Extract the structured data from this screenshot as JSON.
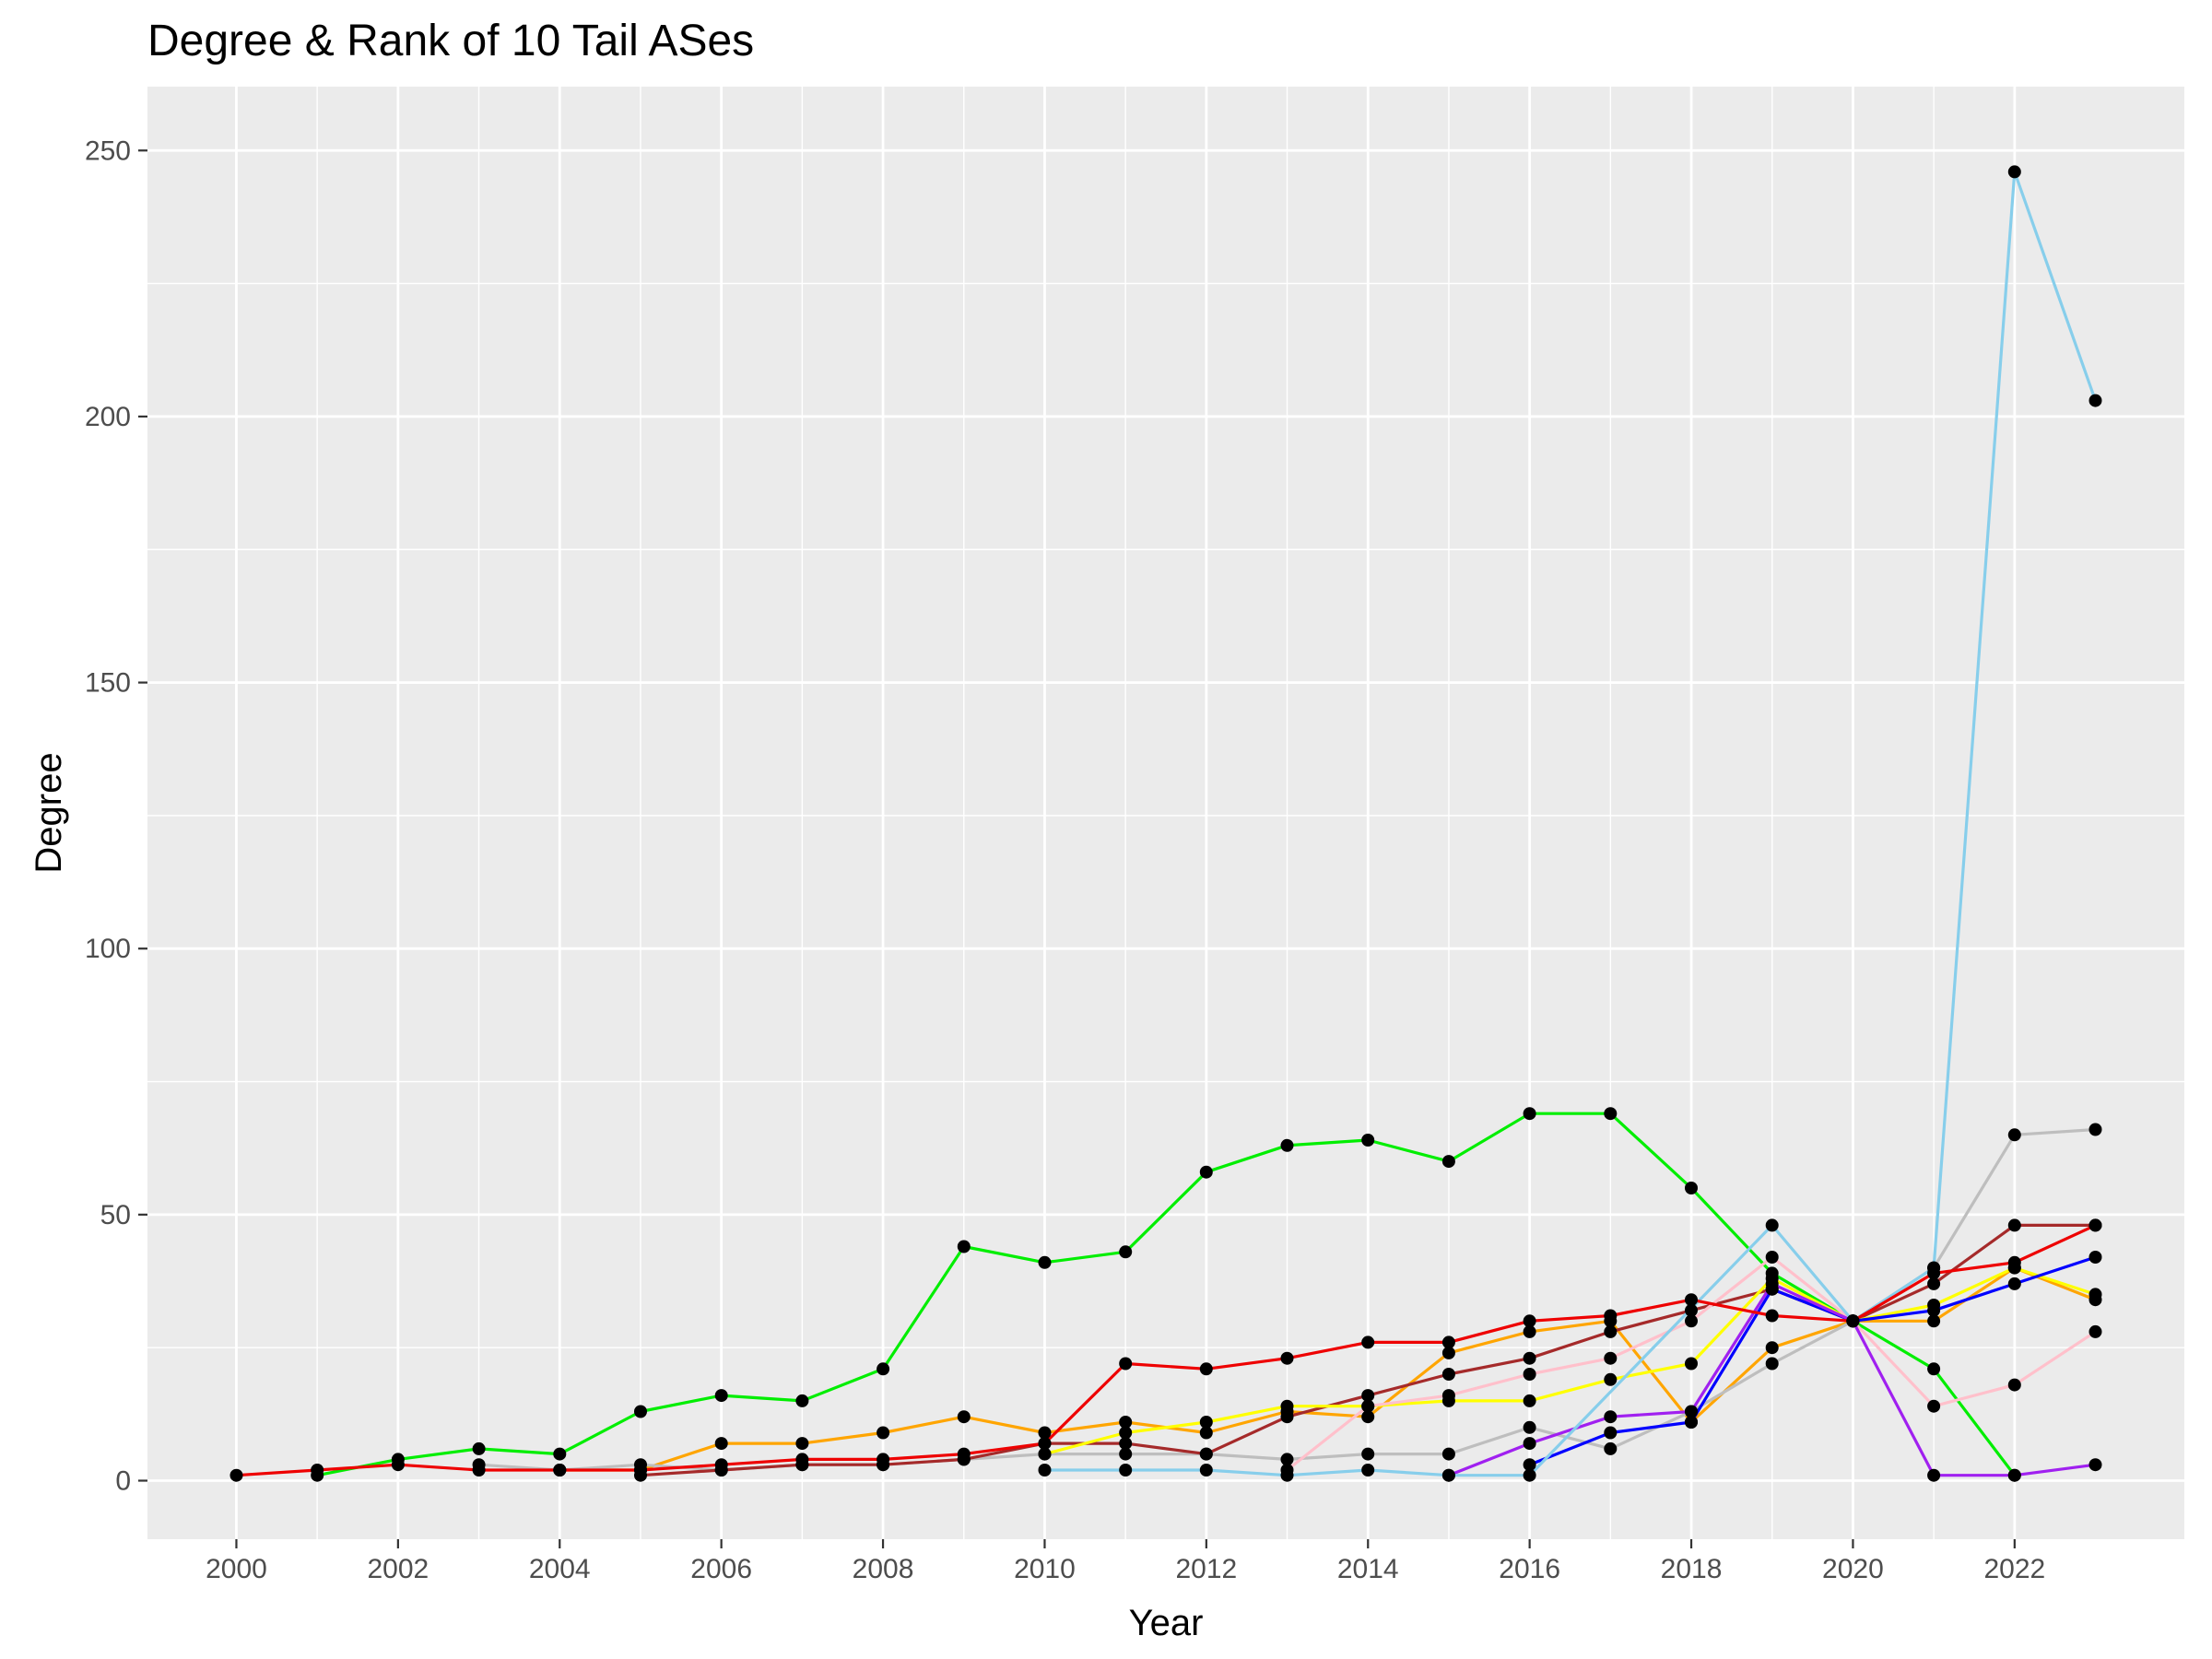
{
  "chart_data": {
    "type": "line",
    "title": "Degree & Rank of 10 Tail ASes",
    "xlabel": "Year",
    "ylabel": "Degree",
    "xlim": [
      1998.9,
      2024.1
    ],
    "ylim": [
      -11,
      262
    ],
    "x_ticks": [
      2000,
      2002,
      2004,
      2006,
      2008,
      2010,
      2012,
      2014,
      2016,
      2018,
      2020,
      2022
    ],
    "y_ticks": [
      0,
      50,
      100,
      150,
      200,
      250
    ],
    "grid": true,
    "legend": "none",
    "colors": {
      "panel_background": "#ebebeb",
      "grid": "#ffffff",
      "point": "#000000",
      "tick_text": "#4d4d4d"
    },
    "series": [
      {
        "color": "#00ee00",
        "x": [
          2001,
          2002,
          2003,
          2004,
          2005,
          2006,
          2007,
          2008,
          2009,
          2010,
          2011,
          2012,
          2013,
          2014,
          2015,
          2016,
          2017,
          2018,
          2019,
          2020,
          2021,
          2022
        ],
        "values": [
          1,
          4,
          6,
          5,
          13,
          16,
          15,
          21,
          44,
          41,
          43,
          58,
          63,
          64,
          60,
          69,
          69,
          55,
          39,
          30,
          21,
          1
        ]
      },
      {
        "color": "#ffa500",
        "x": [
          2004,
          2005,
          2006,
          2007,
          2008,
          2009,
          2010,
          2011,
          2012,
          2013,
          2014,
          2015,
          2016,
          2017,
          2018,
          2019,
          2020,
          2021,
          2022,
          2023
        ],
        "values": [
          2,
          2,
          7,
          7,
          9,
          12,
          9,
          11,
          9,
          13,
          12,
          24,
          28,
          30,
          11,
          25,
          30,
          30,
          40,
          34
        ]
      },
      {
        "color": "#bebebe",
        "x": [
          2003,
          2004,
          2005,
          2006,
          2007,
          2008,
          2009,
          2010,
          2011,
          2012,
          2013,
          2014,
          2015,
          2016,
          2017,
          2018,
          2019,
          2020,
          2021,
          2022,
          2023
        ],
        "values": [
          3,
          2,
          3,
          2,
          3,
          3,
          4,
          5,
          5,
          5,
          4,
          5,
          5,
          10,
          6,
          13,
          22,
          30,
          40,
          65,
          66
        ]
      },
      {
        "color": "#a52a2a",
        "x": [
          2005,
          2006,
          2007,
          2008,
          2009,
          2010,
          2011,
          2012,
          2013,
          2014,
          2015,
          2016,
          2017,
          2018,
          2019,
          2020,
          2021,
          2022,
          2023
        ],
        "values": [
          1,
          2,
          3,
          3,
          4,
          7,
          7,
          5,
          12,
          16,
          20,
          23,
          28,
          32,
          36,
          30,
          37,
          48,
          48
        ]
      },
      {
        "color": "#ffff00",
        "x": [
          2010,
          2011,
          2012,
          2013,
          2014,
          2015,
          2016,
          2017,
          2018,
          2019,
          2020,
          2021,
          2022,
          2023
        ],
        "values": [
          5,
          9,
          11,
          14,
          14,
          15,
          15,
          19,
          22,
          38,
          30,
          33,
          40,
          35
        ]
      },
      {
        "color": "#ffc0cb",
        "x": [
          2013,
          2014,
          2015,
          2016,
          2017,
          2018,
          2019,
          2020,
          2021,
          2022,
          2023
        ],
        "values": [
          2,
          14,
          16,
          20,
          23,
          30,
          42,
          30,
          14,
          18,
          28
        ]
      },
      {
        "color": "#0000ff",
        "x": [
          2016,
          2017,
          2018,
          2019,
          2020,
          2021,
          2022,
          2023
        ],
        "values": [
          3,
          9,
          11,
          36,
          30,
          32,
          37,
          42
        ]
      },
      {
        "color": "#a020f0",
        "x": [
          2015,
          2016,
          2017,
          2018,
          2019,
          2020,
          2021,
          2022,
          2023
        ],
        "values": [
          1,
          7,
          12,
          13,
          37,
          30,
          1,
          1,
          3
        ]
      },
      {
        "color": "#87ceeb",
        "x": [
          2010,
          2011,
          2012,
          2013,
          2014,
          2015,
          2016,
          2019,
          2020,
          2021,
          2022,
          2023
        ],
        "values": [
          2,
          2,
          2,
          1,
          2,
          1,
          1,
          48,
          30,
          40,
          246,
          203
        ]
      },
      {
        "color": "#ee0000",
        "x": [
          2000,
          2001,
          2002,
          2003,
          2004,
          2005,
          2006,
          2007,
          2008,
          2009,
          2010,
          2011,
          2012,
          2013,
          2014,
          2015,
          2016,
          2017,
          2018,
          2019,
          2020,
          2021,
          2022,
          2023
        ],
        "values": [
          1,
          2,
          3,
          2,
          2,
          2,
          3,
          4,
          4,
          5,
          7,
          22,
          21,
          23,
          26,
          26,
          30,
          31,
          34,
          31,
          30,
          39,
          41,
          48
        ]
      }
    ]
  }
}
